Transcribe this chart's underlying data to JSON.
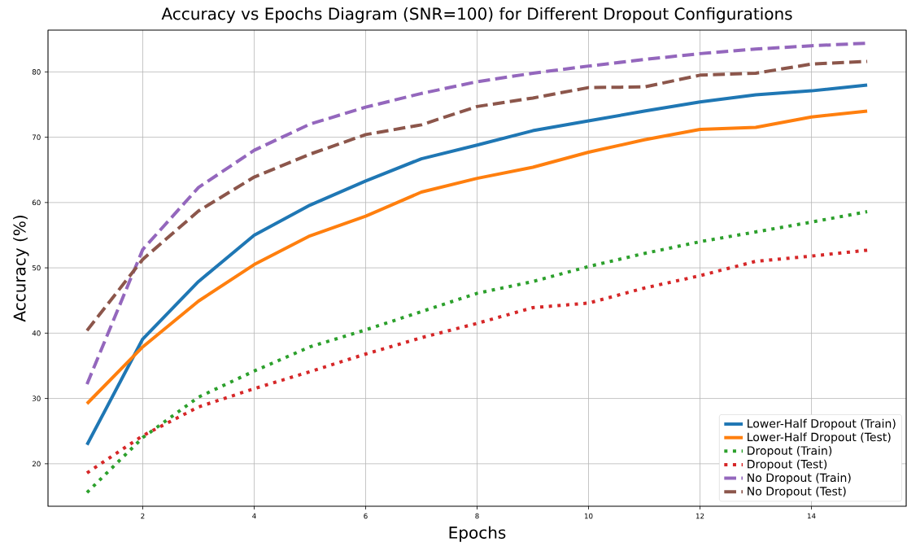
{
  "chart_data": {
    "type": "line",
    "title": "Accuracy vs Epochs Diagram (SNR=100) for Different Dropout Configurations",
    "xlabel": "Epochs",
    "ylabel": "Accuracy (%)",
    "x": [
      1,
      2,
      3,
      4,
      5,
      6,
      7,
      8,
      9,
      10,
      11,
      12,
      13,
      14,
      15
    ],
    "xlim": [
      0.3,
      15.7
    ],
    "ylim": [
      13.5,
      86.4
    ],
    "xticks": [
      2,
      4,
      6,
      8,
      10,
      12,
      14
    ],
    "yticks": [
      20,
      30,
      40,
      50,
      60,
      70,
      80
    ],
    "grid": true,
    "legend": "bottom right",
    "marker": "none",
    "series": [
      {
        "name": "Lower-Half Dropout (Train)",
        "color": "#1f77b4",
        "line_style": "solid",
        "values": [
          22.9,
          39.1,
          47.9,
          55.0,
          59.6,
          63.3,
          66.7,
          68.8,
          71.0,
          72.5,
          74.0,
          75.4,
          76.5,
          77.1,
          78.0
        ]
      },
      {
        "name": "Lower-Half Dropout (Test)",
        "color": "#ff7f0e",
        "line_style": "solid",
        "values": [
          29.2,
          37.9,
          44.9,
          50.5,
          54.9,
          57.9,
          61.6,
          63.7,
          65.4,
          67.7,
          69.6,
          71.2,
          71.5,
          73.1,
          74.0
        ]
      },
      {
        "name": "Dropout (Train)",
        "color": "#2ca02c",
        "line_style": "dotted",
        "values": [
          15.6,
          24.0,
          30.2,
          34.2,
          37.9,
          40.5,
          43.3,
          46.1,
          47.9,
          50.2,
          52.2,
          54.0,
          55.5,
          57.0,
          58.6
        ]
      },
      {
        "name": "Dropout (Test)",
        "color": "#d62728",
        "line_style": "dotted",
        "values": [
          18.6,
          24.3,
          28.7,
          31.5,
          34.1,
          36.8,
          39.3,
          41.5,
          43.9,
          44.6,
          46.9,
          48.8,
          51.0,
          51.8,
          52.7
        ]
      },
      {
        "name": "No Dropout (Train)",
        "color": "#9467bd",
        "line_style": "dashed",
        "values": [
          32.2,
          52.8,
          62.3,
          68.0,
          72.0,
          74.6,
          76.7,
          78.5,
          79.8,
          80.9,
          81.9,
          82.8,
          83.5,
          84.0,
          84.4
        ]
      },
      {
        "name": "No Dropout (Test)",
        "color": "#8c564b",
        "line_style": "dashed",
        "values": [
          40.4,
          51.3,
          58.7,
          63.9,
          67.4,
          70.4,
          71.9,
          74.7,
          76.0,
          77.6,
          77.7,
          79.5,
          79.8,
          81.2,
          81.6
        ]
      }
    ]
  }
}
